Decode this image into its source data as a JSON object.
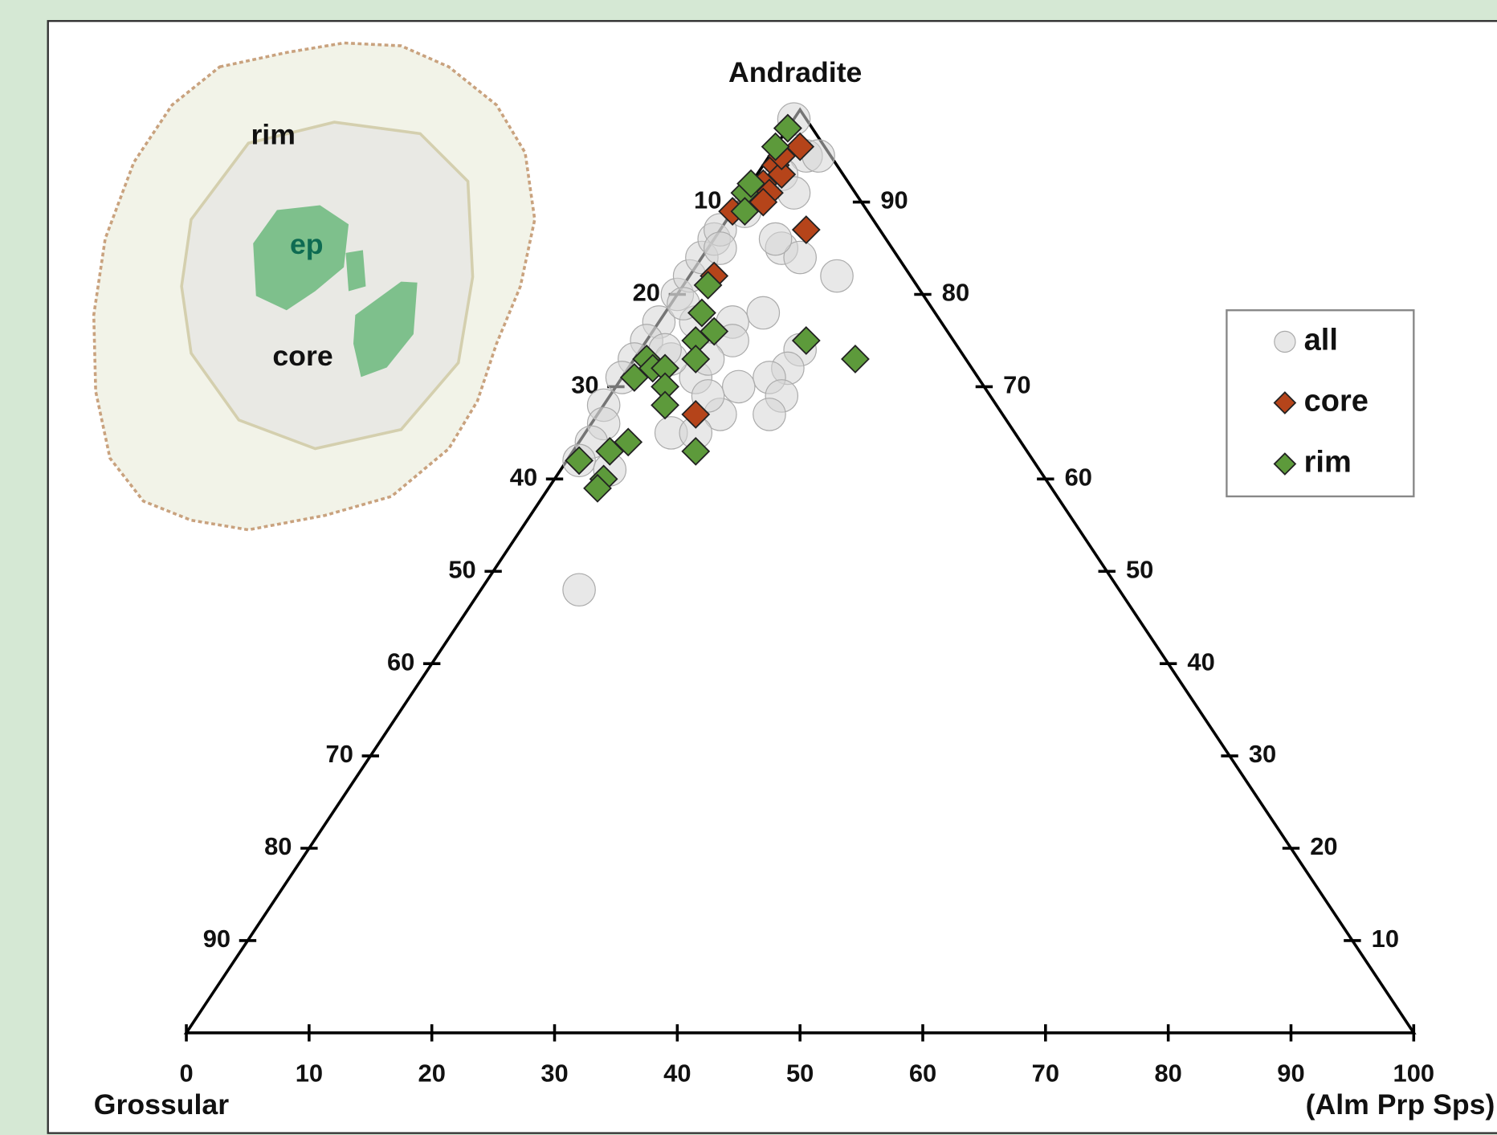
{
  "chart_data": {
    "type": "ternary",
    "top_label": "Andradite",
    "left_label": "Grossular",
    "right_label": "(Alm Prp Sps)",
    "bottom_ticks": [
      0,
      10,
      20,
      30,
      40,
      50,
      60,
      70,
      80,
      90,
      100
    ],
    "left_ticks": [
      10,
      20,
      30,
      40,
      50,
      60,
      70,
      80,
      90
    ],
    "right_ticks": [
      90,
      80,
      70,
      60,
      50,
      40,
      30,
      20,
      10
    ],
    "legend_position": "right",
    "series": [
      {
        "name": "all",
        "color": "#d6d6d6",
        "marker": "circle",
        "andradite": [
          99,
          95,
          95,
          93,
          91,
          85,
          84,
          82,
          78,
          77,
          75,
          74,
          72,
          71,
          70,
          69,
          67,
          67,
          71,
          69,
          80,
          82,
          84,
          86,
          87,
          77,
          77,
          75,
          73,
          71,
          68,
          66,
          64,
          62,
          61,
          65,
          65,
          48,
          89,
          85,
          79,
          73,
          74,
          73,
          86
        ],
        "alm_prp_sps": [
          0,
          3,
          4,
          2,
          4,
          6,
          8,
          12,
          8,
          6,
          7,
          13,
          13,
          12,
          10,
          14,
          14,
          10,
          6,
          8,
          0,
          0,
          0,
          0,
          0,
          3,
          0,
          0,
          0,
          0,
          0,
          1,
          1,
          1,
          4,
          7,
          9,
          8,
          1,
          1,
          1,
          3,
          2,
          6,
          5
        ]
      },
      {
        "name": "core",
        "color": "#b5441a",
        "marker": "diamond",
        "andradite": [
          98,
          96,
          95,
          94,
          93,
          92,
          95,
          91,
          90,
          89,
          87,
          82,
          67
        ],
        "alm_prp_sps": [
          0,
          2,
          1,
          1,
          2,
          1,
          1,
          2,
          2,
          0,
          7,
          2,
          8
        ]
      },
      {
        "name": "rim",
        "color": "#5d9a3b",
        "marker": "diamond",
        "andradite": [
          98,
          96,
          91,
          92,
          89,
          81,
          78,
          76,
          75,
          73,
          75,
          73,
          73,
          72,
          72,
          71,
          70,
          68,
          64,
          63,
          62,
          60,
          59,
          63
        ],
        "alm_prp_sps": [
          0,
          0,
          0,
          0,
          1,
          2,
          3,
          5,
          4,
          5,
          13,
          18,
          1,
          2,
          3,
          1,
          4,
          5,
          4,
          3,
          1,
          4,
          4,
          10
        ]
      }
    ]
  },
  "inset": {
    "labels": [
      "rim",
      "ep",
      "core"
    ]
  }
}
